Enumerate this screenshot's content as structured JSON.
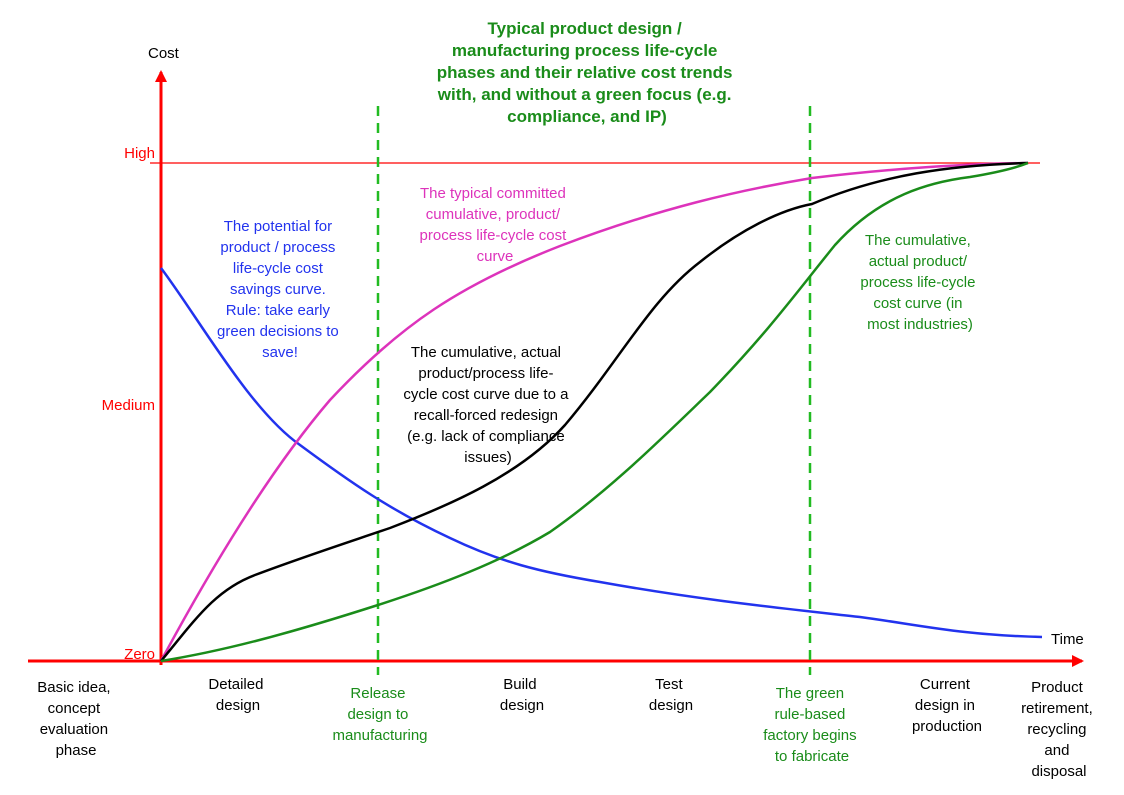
{
  "title": {
    "lines": [
      "Typical product design /",
      "manufacturing process life-cycle",
      "phases and their relative cost trends",
      "with, and without a green focus (e.g.",
      "compliance, and IP)"
    ],
    "color": "#1a8c1a"
  },
  "axes": {
    "y_label": "Cost",
    "x_label": "Time",
    "y_levels": [
      "High",
      "Medium",
      "Zero"
    ],
    "axis_color": "#ff0000"
  },
  "phases": [
    {
      "lines": [
        "Basic idea,",
        "concept",
        "evaluation",
        "phase"
      ],
      "color": "#000000"
    },
    {
      "lines": [
        "Detailed",
        "design"
      ],
      "color": "#000000"
    },
    {
      "lines": [
        "Release",
        "design to",
        "manufacturing"
      ],
      "color": "#1a8c1a"
    },
    {
      "lines": [
        "Build",
        "design"
      ],
      "color": "#000000"
    },
    {
      "lines": [
        "Test",
        "design"
      ],
      "color": "#000000"
    },
    {
      "lines": [
        "The green",
        "rule-based",
        "factory begins",
        "to fabricate"
      ],
      "color": "#1a8c1a"
    },
    {
      "lines": [
        "Current",
        "design in",
        "production"
      ],
      "color": "#000000"
    },
    {
      "lines": [
        "Product",
        "retirement,",
        "recycling",
        "and",
        "disposal"
      ],
      "color": "#000000"
    }
  ],
  "curves": [
    {
      "id": "savings-curve",
      "color": "#2233ee",
      "label": [
        "The potential for",
        "product / process",
        "life-cycle cost",
        "savings curve.",
        "Rule: take early",
        "green decisions to",
        "save!"
      ]
    },
    {
      "id": "committed-curve",
      "color": "#dd33bb",
      "label": [
        "The typical committed",
        "cumulative, product/",
        "process life-cycle cost",
        "curve"
      ]
    },
    {
      "id": "recall-curve",
      "color": "#000000",
      "label": [
        "The cumulative, actual",
        "product/process life-",
        "cycle cost curve due to a",
        "recall-forced redesign",
        "(e.g. lack of compliance",
        "issues)"
      ]
    },
    {
      "id": "actual-curve",
      "color": "#1a8c1a",
      "label": [
        "The cumulative,",
        "actual product/",
        "process life-cycle",
        "cost curve (in",
        "most industries)"
      ]
    }
  ]
}
